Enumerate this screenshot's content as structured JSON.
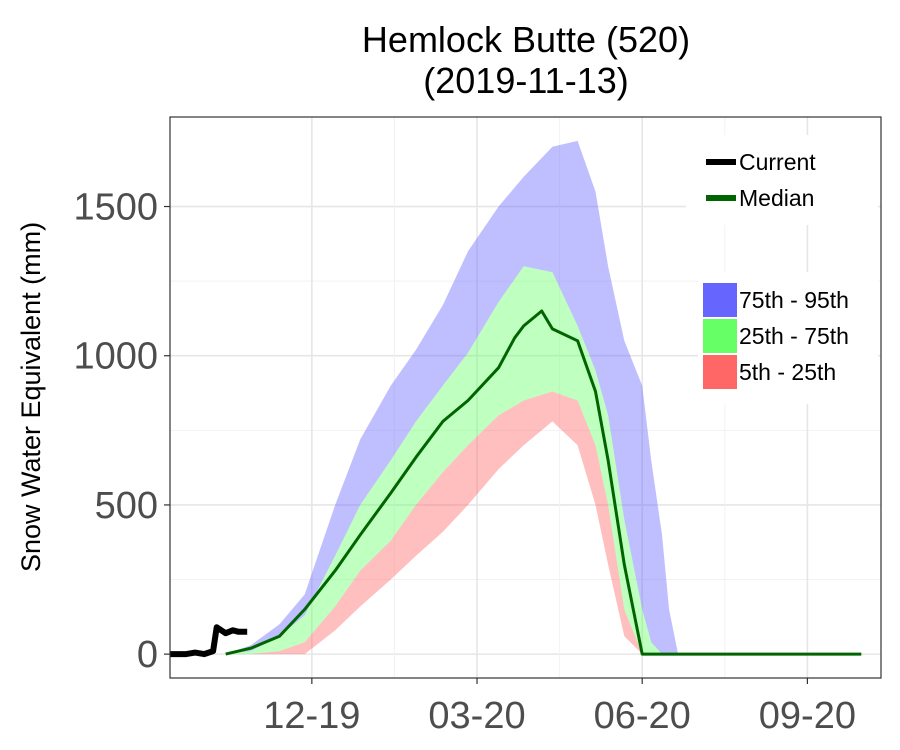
{
  "chart_data": {
    "type": "area",
    "title": "Hemlock Butte (520)",
    "subtitle": "(2019-11-13)",
    "xlabel": "",
    "ylabel": "Snow Water Equivalent (mm)",
    "ylim": [
      -80,
      1800
    ],
    "x_range": [
      "2019-10-01",
      "2020-10-31"
    ],
    "yticks": [
      0,
      500,
      1000,
      1500
    ],
    "xticks": [
      {
        "label": "12-19",
        "date": "2019-12-19"
      },
      {
        "label": "03-20",
        "date": "2020-03-20"
      },
      {
        "label": "06-20",
        "date": "2020-06-20"
      },
      {
        "label": "09-20",
        "date": "2020-09-20"
      }
    ],
    "grid": true,
    "legend_position": "top-right",
    "legend_lines": [
      {
        "name": "Current",
        "color": "#000000"
      },
      {
        "name": "Median",
        "color": "#006400"
      }
    ],
    "legend_bands": [
      {
        "name": "75th - 95th",
        "color": "#6666ff"
      },
      {
        "name": "25th - 75th",
        "color": "#66ff66"
      },
      {
        "name": "5th - 25th",
        "color": "#ff6666"
      }
    ],
    "dates": [
      "2019-10-01",
      "2019-10-15",
      "2019-11-01",
      "2019-11-15",
      "2019-12-01",
      "2019-12-15",
      "2020-01-01",
      "2020-01-15",
      "2020-02-01",
      "2020-02-15",
      "2020-03-01",
      "2020-03-15",
      "2020-04-01",
      "2020-04-15",
      "2020-05-01",
      "2020-05-15",
      "2020-05-25",
      "2020-06-01",
      "2020-06-10",
      "2020-06-20",
      "2020-06-25",
      "2020-07-01",
      "2020-07-05",
      "2020-07-10",
      "2020-07-15",
      "2020-08-01",
      "2020-09-01",
      "2020-10-01",
      "2020-10-20"
    ],
    "bands": {
      "p5": [
        0,
        0,
        0,
        0,
        0,
        0,
        80,
        160,
        250,
        330,
        410,
        500,
        620,
        700,
        780,
        700,
        500,
        300,
        60,
        0,
        0,
        0,
        0,
        0,
        0,
        0,
        0,
        0,
        0
      ],
      "p25": [
        0,
        0,
        0,
        0,
        10,
        40,
        160,
        280,
        380,
        500,
        610,
        700,
        800,
        850,
        880,
        850,
        700,
        500,
        150,
        0,
        0,
        0,
        0,
        0,
        0,
        0,
        0,
        0,
        0
      ],
      "p75": [
        0,
        0,
        0,
        10,
        60,
        130,
        330,
        500,
        650,
        780,
        900,
        1010,
        1180,
        1300,
        1280,
        1100,
        950,
        800,
        450,
        150,
        40,
        0,
        0,
        0,
        0,
        0,
        0,
        0,
        0
      ],
      "p95": [
        0,
        0,
        0,
        30,
        100,
        200,
        500,
        720,
        900,
        1020,
        1170,
        1350,
        1500,
        1600,
        1700,
        1720,
        1550,
        1300,
        1050,
        900,
        650,
        400,
        150,
        0,
        0,
        0,
        0,
        0,
        0
      ]
    },
    "series": [
      {
        "name": "Median",
        "color": "#006400",
        "x": [
          "2019-11-01",
          "2019-11-15",
          "2019-12-01",
          "2019-12-15",
          "2020-01-01",
          "2020-01-15",
          "2020-02-01",
          "2020-02-15",
          "2020-03-01",
          "2020-03-15",
          "2020-04-01",
          "2020-04-10",
          "2020-04-15",
          "2020-04-25",
          "2020-05-01",
          "2020-05-15",
          "2020-05-25",
          "2020-06-01",
          "2020-06-10",
          "2020-06-20",
          "2020-06-25",
          "2020-07-01",
          "2020-08-01",
          "2020-09-01",
          "2020-10-01",
          "2020-10-20"
        ],
        "values": [
          0,
          20,
          60,
          150,
          280,
          400,
          540,
          660,
          780,
          850,
          960,
          1060,
          1100,
          1150,
          1090,
          1050,
          880,
          650,
          300,
          0,
          0,
          0,
          0,
          0,
          0,
          0
        ]
      },
      {
        "name": "Current",
        "color": "#000000",
        "x": [
          "2019-10-01",
          "2019-10-10",
          "2019-10-15",
          "2019-10-20",
          "2019-10-25",
          "2019-10-27",
          "2019-11-01",
          "2019-11-05",
          "2019-11-08",
          "2019-11-13"
        ],
        "values": [
          0,
          0,
          5,
          0,
          10,
          90,
          70,
          80,
          75,
          75
        ]
      }
    ]
  }
}
